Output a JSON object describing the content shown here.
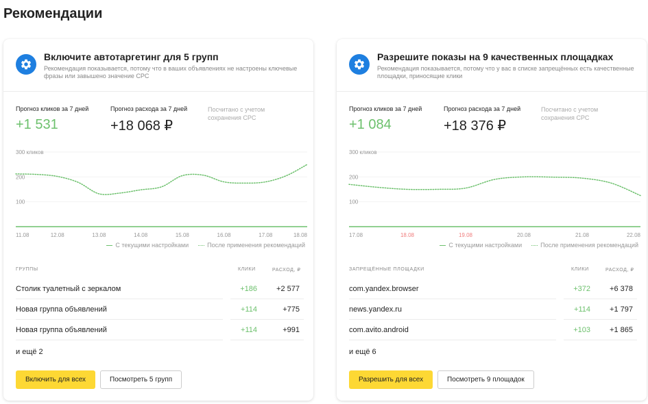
{
  "page": {
    "title": "Рекомендации"
  },
  "cards": [
    {
      "title": "Включите автотаргетинг для 5 групп",
      "description": "Рекомендация показывается, потому что в ваших объявлениях не настроены ключевые фразы или завышено значение CPC",
      "icon": "gear-icon",
      "metrics": {
        "clicks_label": "Прогноз кликов за 7 дней",
        "clicks_value": "+1 531",
        "spend_label": "Прогноз расхода за 7 дней",
        "spend_value": "+18 068 ₽",
        "note": "Посчитано с учетом сохранения CPC"
      },
      "table": {
        "col_name": "ГРУППЫ",
        "col_clicks": "КЛИКИ",
        "col_spend": "РАСХОД, ₽",
        "rows": [
          {
            "name": "Столик туалетный с зеркалом",
            "clicks": "+186",
            "spend": "+2 577"
          },
          {
            "name": "Новая группа объявлений",
            "clicks": "+114",
            "spend": "+775"
          },
          {
            "name": "Новая группа объявлений",
            "clicks": "+114",
            "spend": "+991"
          }
        ],
        "more": "и ещё 2"
      },
      "buttons": {
        "primary": "Включить для всех",
        "secondary": "Посмотреть 5 групп"
      }
    },
    {
      "title": "Разрешите показы на 9 качественных площадках",
      "description": "Рекомендация показывается, потому что у вас в списке запрещённых есть качественные площадки, приносящие клики",
      "icon": "gear-icon",
      "metrics": {
        "clicks_label": "Прогноз кликов за 7 дней",
        "clicks_value": "+1 084",
        "spend_label": "Прогноз расхода за 7 дней",
        "spend_value": "+18 376 ₽",
        "note": "Посчитано с учетом сохранения CPC"
      },
      "table": {
        "col_name": "ЗАПРЕЩЁННЫЕ ПЛОЩАДКИ",
        "col_clicks": "КЛИКИ",
        "col_spend": "РАСХОД, ₽",
        "rows": [
          {
            "name": "com.yandex.browser",
            "clicks": "+372",
            "spend": "+6 378"
          },
          {
            "name": "news.yandex.ru",
            "clicks": "+114",
            "spend": "+1 797"
          },
          {
            "name": "com.avito.android",
            "clicks": "+103",
            "spend": "+1 865"
          }
        ],
        "more": "и ещё 6"
      },
      "buttons": {
        "primary": "Разрешить для всех",
        "secondary": "Посмотреть 9 площадок"
      }
    }
  ],
  "chart_data": [
    {
      "type": "line",
      "ylim": [
        0,
        300
      ],
      "ylabel": "300 кликов",
      "y_ticks": [
        "300 кликов",
        "200",
        "100"
      ],
      "x_ticks": [
        "11.08",
        "12.08",
        "13.08",
        "14.08",
        "15.08",
        "16.08",
        "17.08",
        "18.08"
      ],
      "x_tick_colors": [
        "#999999",
        "#999999",
        "#999999",
        "#999999",
        "#999999",
        "#999999",
        "#999999",
        "#999999"
      ],
      "x": [
        0,
        0.5,
        1,
        1.5,
        2,
        2.5,
        3,
        3.5,
        4,
        4.5,
        5,
        5.5,
        6,
        6.5,
        7
      ],
      "series": [
        {
          "name": "С текущими настройками",
          "style": "solid",
          "color": "#6cc06c",
          "values": [
            0,
            0,
            0,
            0,
            0,
            0,
            0,
            0,
            0,
            0,
            0,
            0,
            0,
            0,
            0
          ]
        },
        {
          "name": "После применения рекомендаций",
          "style": "dotted",
          "color": "#6cc06c",
          "values": [
            212,
            210,
            202,
            178,
            132,
            135,
            148,
            160,
            205,
            207,
            180,
            175,
            180,
            205,
            250
          ]
        }
      ],
      "legend": "bottom-right"
    },
    {
      "type": "line",
      "ylim": [
        0,
        300
      ],
      "ylabel": "300 кликов",
      "y_ticks": [
        "300 кликов",
        "200",
        "100"
      ],
      "x_ticks": [
        "17.08",
        "18.08",
        "19.08",
        "20.08",
        "21.08",
        "22.08"
      ],
      "x_tick_colors": [
        "#999999",
        "#f07d7d",
        "#f07d7d",
        "#999999",
        "#999999",
        "#999999"
      ],
      "x": [
        0,
        0.5,
        1,
        1.5,
        2,
        2.5,
        3,
        3.5,
        4,
        4.5,
        5
      ],
      "series": [
        {
          "name": "С текущими настройками",
          "style": "solid",
          "color": "#6cc06c",
          "values": [
            0,
            0,
            0,
            0,
            0,
            0,
            0,
            0,
            0,
            0,
            0
          ]
        },
        {
          "name": "После применения рекомендаций",
          "style": "dotted",
          "color": "#6cc06c",
          "values": [
            170,
            158,
            150,
            150,
            155,
            190,
            200,
            199,
            195,
            175,
            125
          ]
        }
      ],
      "legend": "bottom-right"
    }
  ]
}
